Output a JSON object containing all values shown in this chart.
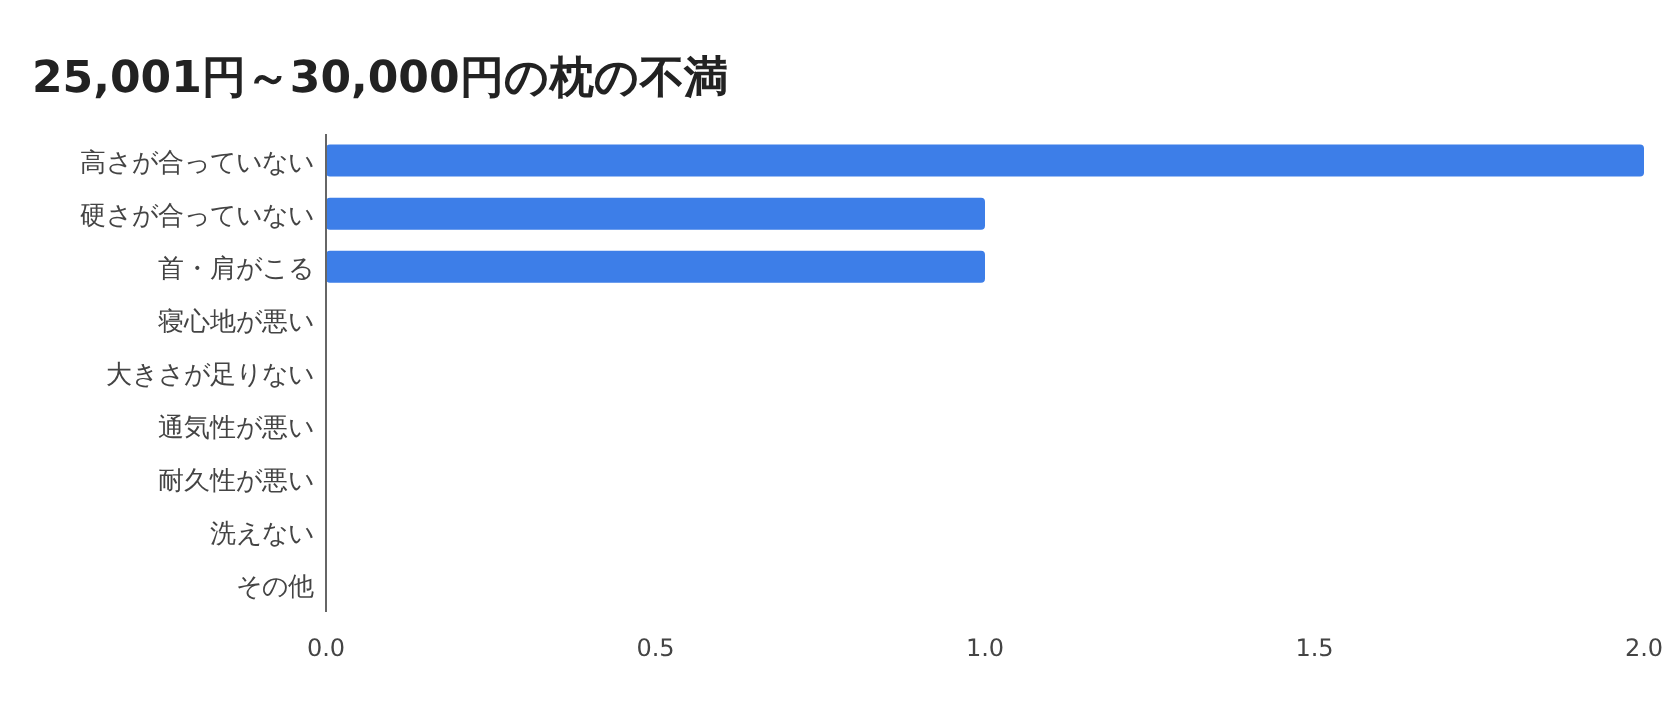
{
  "chart_data": {
    "type": "bar",
    "orientation": "horizontal",
    "title": "25,001円～30,000円の枕の不満",
    "categories": [
      "高さが合っていない",
      "硬さが合っていない",
      "首・肩がこる",
      "寝心地が悪い",
      "大きさが足りない",
      "通気性が悪い",
      "耐久性が悪い",
      "洗えない",
      "その他"
    ],
    "values": [
      2,
      1,
      1,
      0,
      0,
      0,
      0,
      0,
      0
    ],
    "color": "#3d7ee8",
    "xlim": [
      0,
      2
    ],
    "xticks": [
      {
        "value": 0,
        "label": "0.0"
      },
      {
        "value": 0.5,
        "label": "0.5"
      },
      {
        "value": 1,
        "label": "1.0"
      },
      {
        "value": 1.5,
        "label": "1.5"
      },
      {
        "value": 2,
        "label": "2.0"
      }
    ],
    "grid": false
  }
}
